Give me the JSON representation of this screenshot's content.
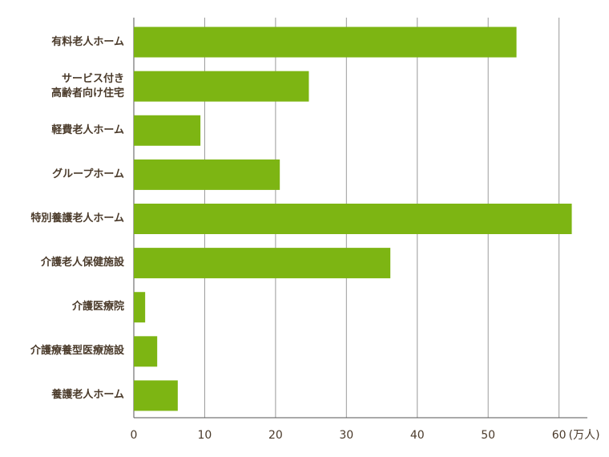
{
  "chart_data": {
    "type": "bar",
    "orientation": "horizontal",
    "categories": [
      "有料老人ホーム",
      "サービス付き\n高齢者向け住宅",
      "軽費老人ホーム",
      "グループホーム",
      "特別養護老人ホーム",
      "介護老人保健施設",
      "介護医療院",
      "介護療養型医療施設",
      "養護老人ホーム"
    ],
    "values": [
      54,
      24.7,
      9.4,
      20.6,
      61.8,
      36.2,
      1.6,
      3.3,
      6.2
    ],
    "color": "#7db513",
    "x_unit": "(万人)",
    "xlim": [
      0,
      64
    ],
    "xticks": [
      0,
      10,
      20,
      30,
      40,
      50,
      60
    ],
    "grid": true
  }
}
